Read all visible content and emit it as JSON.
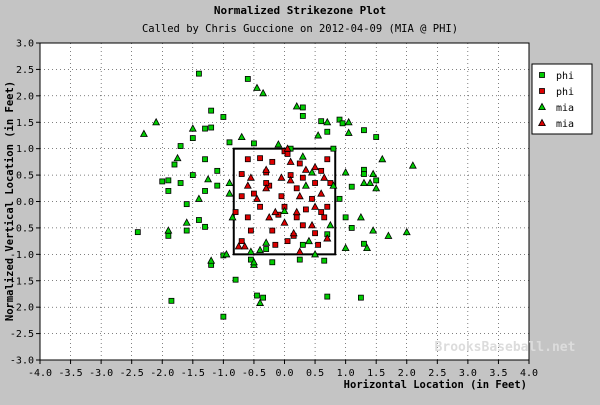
{
  "chart_data": {
    "type": "scatter",
    "title": "Normalized Strikezone Plot",
    "subtitle": "Called by Chris Guccione on 2012-04-09 (MIA @ PHI)",
    "xlabel": "Horizontal Location (in Feet)",
    "ylabel": "Normalized Vertical Location (in Feet)",
    "xlim": [
      -4.0,
      4.0
    ],
    "ylim": [
      -3.0,
      3.0
    ],
    "x_ticks": [
      "-4.0",
      "-3.5",
      "-3.0",
      "-2.5",
      "-2.0",
      "-1.5",
      "-1.0",
      "-0.5",
      "0.0",
      "0.5",
      "1.0",
      "1.5",
      "2.0",
      "2.5",
      "3.0",
      "3.5",
      "4.0"
    ],
    "y_ticks": [
      "3.0",
      "2.5",
      "2.0",
      "1.5",
      "1.0",
      "0.5",
      "0.0",
      "-0.5",
      "-1.0",
      "-1.5",
      "-2.0",
      "-2.5",
      "-3.0"
    ],
    "grid": true,
    "legend_position": "top-right",
    "watermark": "BrooksBaseball.net",
    "strike_zone": {
      "x": [
        -0.83,
        0.83
      ],
      "y": [
        -1.0,
        1.0
      ]
    },
    "series": [
      {
        "name": "phi",
        "marker": "square",
        "color": "#00cc00",
        "points": [
          [
            -1.4,
            2.42
          ],
          [
            -0.6,
            2.32
          ],
          [
            -1.2,
            1.72
          ],
          [
            -1.0,
            1.6
          ],
          [
            -1.2,
            1.4
          ],
          [
            -1.3,
            1.38
          ],
          [
            -1.5,
            1.2
          ],
          [
            -1.7,
            1.05
          ],
          [
            -0.9,
            1.12
          ],
          [
            -0.5,
            1.1
          ],
          [
            0.1,
            1.0
          ],
          [
            -1.3,
            0.8
          ],
          [
            -1.8,
            0.7
          ],
          [
            -1.1,
            0.58
          ],
          [
            -1.5,
            0.5
          ],
          [
            -1.9,
            0.4
          ],
          [
            -2.0,
            0.38
          ],
          [
            -1.7,
            0.35
          ],
          [
            -1.1,
            0.3
          ],
          [
            -1.3,
            0.2
          ],
          [
            -1.9,
            0.2
          ],
          [
            -1.6,
            -0.05
          ],
          [
            -2.4,
            -0.58
          ],
          [
            -1.9,
            -0.65
          ],
          [
            -1.6,
            -0.55
          ],
          [
            -1.4,
            -0.35
          ],
          [
            -1.3,
            -0.48
          ],
          [
            -1.2,
            -1.2
          ],
          [
            -1.0,
            -1.02
          ],
          [
            -0.8,
            -1.48
          ],
          [
            -0.55,
            -1.1
          ],
          [
            -0.2,
            -1.15
          ],
          [
            -0.45,
            -1.78
          ],
          [
            -0.35,
            -1.82
          ],
          [
            -1.0,
            -2.18
          ],
          [
            -1.85,
            -1.88
          ],
          [
            0.3,
            1.78
          ],
          [
            0.3,
            1.62
          ],
          [
            0.6,
            1.52
          ],
          [
            0.7,
            1.32
          ],
          [
            0.9,
            1.55
          ],
          [
            0.95,
            1.48
          ],
          [
            1.3,
            1.35
          ],
          [
            1.5,
            1.22
          ],
          [
            0.8,
            1.0
          ],
          [
            1.3,
            0.6
          ],
          [
            1.3,
            0.52
          ],
          [
            1.5,
            0.4
          ],
          [
            1.1,
            0.28
          ],
          [
            0.9,
            0.05
          ],
          [
            1.0,
            -0.3
          ],
          [
            1.1,
            -0.5
          ],
          [
            0.7,
            -0.62
          ],
          [
            0.3,
            -0.82
          ],
          [
            -0.3,
            -0.9
          ],
          [
            0.65,
            -1.12
          ],
          [
            0.25,
            -1.1
          ],
          [
            0.7,
            -1.8
          ],
          [
            1.25,
            -1.82
          ],
          [
            1.3,
            -0.8
          ]
        ]
      },
      {
        "name": "phi",
        "marker": "square",
        "color": "#dd0000",
        "points": [
          [
            -0.6,
            0.8
          ],
          [
            -0.4,
            0.82
          ],
          [
            -0.2,
            0.75
          ],
          [
            0.0,
            0.95
          ],
          [
            0.05,
            0.9
          ],
          [
            -0.7,
            0.52
          ],
          [
            -0.3,
            0.55
          ],
          [
            -0.25,
            0.3
          ],
          [
            0.1,
            0.5
          ],
          [
            0.3,
            0.45
          ],
          [
            0.5,
            0.35
          ],
          [
            0.7,
            0.8
          ],
          [
            0.6,
            0.58
          ],
          [
            0.45,
            0.05
          ],
          [
            -0.05,
            0.1
          ],
          [
            -0.5,
            0.15
          ],
          [
            -0.7,
            0.1
          ],
          [
            -0.8,
            -0.2
          ],
          [
            -0.4,
            -0.1
          ],
          [
            -0.6,
            -0.3
          ],
          [
            0.0,
            -0.1
          ],
          [
            0.2,
            -0.3
          ],
          [
            0.35,
            -0.15
          ],
          [
            0.6,
            -0.2
          ],
          [
            0.7,
            -0.1
          ],
          [
            -0.2,
            -0.55
          ],
          [
            0.05,
            -0.75
          ],
          [
            0.15,
            -0.65
          ],
          [
            0.3,
            -0.45
          ],
          [
            0.5,
            -0.6
          ],
          [
            -0.7,
            -0.75
          ],
          [
            -0.15,
            -0.82
          ],
          [
            0.65,
            -0.3
          ],
          [
            -0.3,
            0.35
          ],
          [
            0.2,
            0.25
          ],
          [
            -0.55,
            -0.55
          ],
          [
            0.75,
            0.35
          ],
          [
            0.25,
            0.72
          ],
          [
            -0.1,
            -0.25
          ],
          [
            0.55,
            -0.82
          ]
        ]
      },
      {
        "name": "mia",
        "marker": "triangle",
        "color": "#00cc00",
        "points": [
          [
            -2.3,
            1.28
          ],
          [
            -2.1,
            1.5
          ],
          [
            -1.5,
            1.38
          ],
          [
            -1.75,
            0.82
          ],
          [
            -1.25,
            0.42
          ],
          [
            -1.4,
            0.05
          ],
          [
            -1.6,
            -0.4
          ],
          [
            -1.9,
            -0.55
          ],
          [
            -1.2,
            -1.12
          ],
          [
            -0.5,
            -1.2
          ],
          [
            -0.4,
            -1.92
          ],
          [
            -0.95,
            -1.0
          ],
          [
            -0.4,
            -0.92
          ],
          [
            -0.35,
            2.05
          ],
          [
            -0.45,
            2.15
          ],
          [
            0.2,
            1.8
          ],
          [
            -0.7,
            1.22
          ],
          [
            0.3,
            0.85
          ],
          [
            0.7,
            1.5
          ],
          [
            1.05,
            1.3
          ],
          [
            1.05,
            1.5
          ],
          [
            0.55,
            1.25
          ],
          [
            1.0,
            0.55
          ],
          [
            1.3,
            0.35
          ],
          [
            1.45,
            0.52
          ],
          [
            1.4,
            0.35
          ],
          [
            1.6,
            0.8
          ],
          [
            2.1,
            0.68
          ],
          [
            1.5,
            0.25
          ],
          [
            1.25,
            -0.3
          ],
          [
            1.45,
            -0.55
          ],
          [
            1.7,
            -0.65
          ],
          [
            2.0,
            -0.58
          ],
          [
            1.35,
            -0.88
          ],
          [
            1.0,
            -0.88
          ],
          [
            0.7,
            -0.7
          ],
          [
            0.75,
            -0.45
          ],
          [
            0.4,
            -0.75
          ],
          [
            -0.3,
            -0.78
          ],
          [
            -0.55,
            -0.95
          ],
          [
            -0.85,
            -0.3
          ],
          [
            -0.9,
            0.15
          ],
          [
            -0.9,
            0.35
          ],
          [
            -0.5,
            -1.15
          ],
          [
            0.0,
            -0.18
          ],
          [
            0.45,
            0.55
          ],
          [
            0.35,
            0.3
          ],
          [
            0.8,
            0.3
          ],
          [
            -0.1,
            1.08
          ],
          [
            0.5,
            -1.0
          ]
        ]
      },
      {
        "name": "mia",
        "marker": "triangle",
        "color": "#dd0000",
        "points": [
          [
            -0.3,
            0.25
          ],
          [
            0.1,
            0.4
          ],
          [
            0.25,
            0.1
          ],
          [
            -0.15,
            -0.2
          ],
          [
            0.45,
            -0.45
          ],
          [
            -0.6,
            0.3
          ],
          [
            0.0,
            -0.4
          ],
          [
            -0.25,
            -0.3
          ],
          [
            0.5,
            -0.1
          ],
          [
            0.1,
            0.75
          ],
          [
            0.35,
            0.6
          ],
          [
            -0.45,
            0.05
          ],
          [
            -0.75,
            -0.85
          ],
          [
            0.6,
            0.15
          ],
          [
            0.15,
            -0.6
          ],
          [
            0.05,
            1.0
          ],
          [
            -0.3,
            0.6
          ],
          [
            -0.65,
            -0.85
          ],
          [
            0.7,
            -0.7
          ],
          [
            0.25,
            -0.95
          ],
          [
            -0.55,
            0.45
          ],
          [
            0.5,
            0.65
          ],
          [
            -0.05,
            0.45
          ],
          [
            0.2,
            -0.2
          ],
          [
            0.65,
            0.45
          ]
        ]
      }
    ]
  }
}
